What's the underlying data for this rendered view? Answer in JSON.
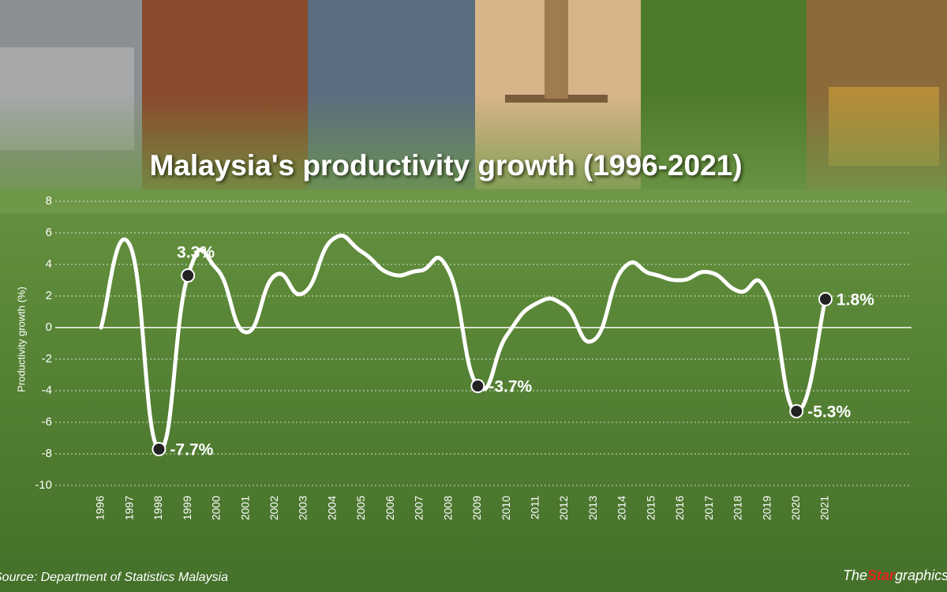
{
  "chart_data": {
    "type": "line",
    "title": "Malaysia's productivity growth (1996-2021)",
    "y_label": "Productivity growth (%)",
    "source": "Source: Department of Statistics Malaysia",
    "brand": [
      "The",
      "Star",
      "graphics"
    ],
    "categories": [
      "1996",
      "1997",
      "1998",
      "1999",
      "2000",
      "2001",
      "2002",
      "2003",
      "2004",
      "2005",
      "2006",
      "2007",
      "2008",
      "2009",
      "2010",
      "2011",
      "2012",
      "2013",
      "2014",
      "2015",
      "2016",
      "2017",
      "2018",
      "2019",
      "2020",
      "2021"
    ],
    "values": [
      0,
      5.2,
      -7.7,
      3.3,
      3.7,
      -0.3,
      3.3,
      2.2,
      5.6,
      4.8,
      3.4,
      3.6,
      3.6,
      -3.7,
      -0.5,
      1.5,
      1.4,
      -0.8,
      3.7,
      3.4,
      3.0,
      3.5,
      2.3,
      2.2,
      -5.3,
      1.8
    ],
    "value_labels": [
      null,
      null,
      "-7.7%",
      "3.3%",
      null,
      null,
      null,
      null,
      null,
      null,
      null,
      null,
      null,
      "-3.7%",
      null,
      null,
      null,
      null,
      null,
      null,
      null,
      null,
      null,
      null,
      "-5.3%",
      "1.8%"
    ],
    "color": "#ffffff",
    "ylim": [
      -10,
      8
    ],
    "yticks": [
      -10,
      -8,
      -6,
      -4,
      -2,
      0,
      2,
      4,
      6,
      8
    ],
    "grid": true
  }
}
